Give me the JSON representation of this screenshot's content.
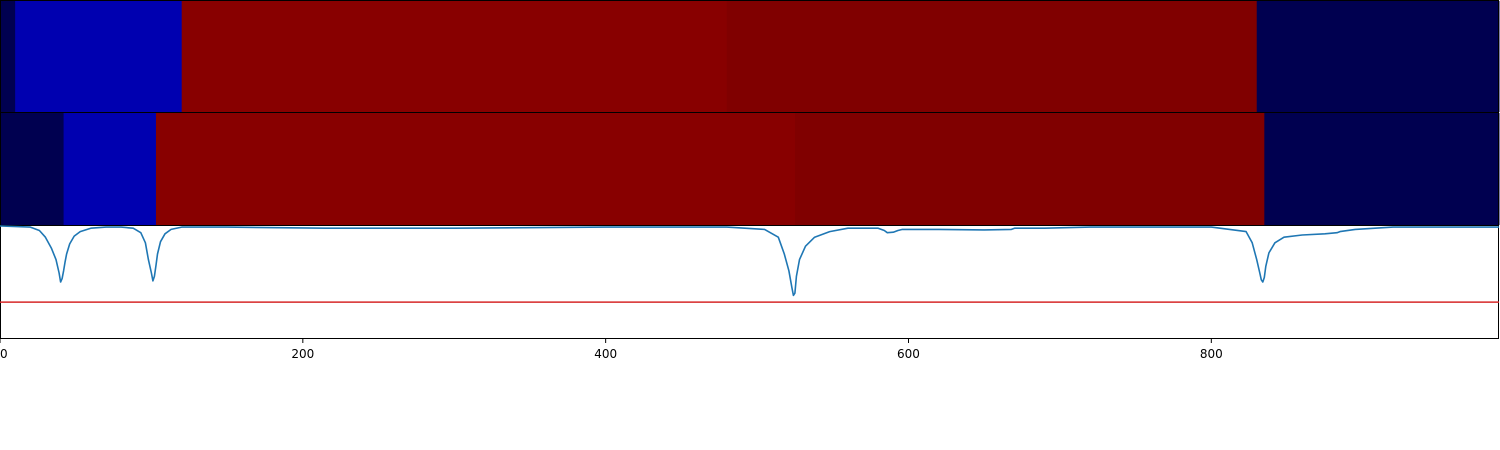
{
  "chart_data": [
    {
      "type": "heatmap",
      "xlim": [
        0,
        990
      ],
      "segments": [
        {
          "x0": 0,
          "x1": 10,
          "color": "#000050"
        },
        {
          "x0": 10,
          "x1": 120,
          "color": "#0000b0"
        },
        {
          "x0": 120,
          "x1": 480,
          "color": "#880000"
        },
        {
          "x0": 480,
          "x1": 830,
          "color": "#800000"
        },
        {
          "x0": 830,
          "x1": 990,
          "color": "#000050"
        }
      ]
    },
    {
      "type": "heatmap",
      "xlim": [
        0,
        990
      ],
      "segments": [
        {
          "x0": 0,
          "x1": 42,
          "color": "#000050"
        },
        {
          "x0": 42,
          "x1": 103,
          "color": "#0000b0"
        },
        {
          "x0": 103,
          "x1": 525,
          "color": "#880000"
        },
        {
          "x0": 525,
          "x1": 835,
          "color": "#800000"
        },
        {
          "x0": 835,
          "x1": 990,
          "color": "#000050"
        }
      ]
    },
    {
      "type": "line",
      "xlim": [
        0,
        990
      ],
      "ylim": [
        -1.0,
        0.0
      ],
      "xticks": [
        0,
        200,
        400,
        600,
        800
      ],
      "xtick_labels": [
        "0",
        "200",
        "400",
        "600",
        "800"
      ],
      "threshold": {
        "value": -0.68,
        "color": "#d62728"
      },
      "series": [
        {
          "color": "#1f77b4",
          "x": [
            0,
            20,
            26,
            30,
            34,
            37,
            39,
            40,
            41,
            42,
            43,
            44,
            46,
            49,
            53,
            60,
            70,
            80,
            88,
            93,
            96,
            98,
            100,
            101,
            102,
            103,
            104,
            106,
            109,
            113,
            120,
            150,
            215,
            300,
            400,
            480,
            505,
            514,
            518,
            521,
            523,
            524,
            525,
            526,
            528,
            532,
            538,
            548,
            560,
            580,
            584,
            586,
            590,
            593,
            596,
            600,
            620,
            650,
            668,
            670,
            690,
            720,
            800,
            823,
            827,
            830,
            832,
            833,
            834,
            835,
            836,
            838,
            842,
            848,
            860,
            875,
            883,
            885,
            895,
            920,
            960,
            990
          ],
          "y": [
            0.0,
            -0.01,
            -0.04,
            -0.1,
            -0.2,
            -0.3,
            -0.42,
            -0.5,
            -0.47,
            -0.4,
            -0.32,
            -0.25,
            -0.16,
            -0.09,
            -0.05,
            -0.02,
            -0.01,
            -0.01,
            -0.02,
            -0.06,
            -0.15,
            -0.3,
            -0.42,
            -0.49,
            -0.45,
            -0.35,
            -0.25,
            -0.14,
            -0.07,
            -0.03,
            -0.01,
            -0.01,
            -0.02,
            -0.02,
            -0.01,
            -0.01,
            -0.03,
            -0.1,
            -0.25,
            -0.4,
            -0.55,
            -0.62,
            -0.6,
            -0.45,
            -0.3,
            -0.18,
            -0.1,
            -0.05,
            -0.02,
            -0.02,
            -0.04,
            -0.06,
            -0.055,
            -0.04,
            -0.03,
            -0.03,
            -0.03,
            -0.035,
            -0.03,
            -0.02,
            -0.02,
            -0.01,
            -0.01,
            -0.05,
            -0.15,
            -0.3,
            -0.42,
            -0.48,
            -0.5,
            -0.46,
            -0.36,
            -0.24,
            -0.15,
            -0.1,
            -0.08,
            -0.07,
            -0.06,
            -0.05,
            -0.03,
            -0.01,
            -0.01,
            -0.01
          ]
        }
      ]
    }
  ]
}
